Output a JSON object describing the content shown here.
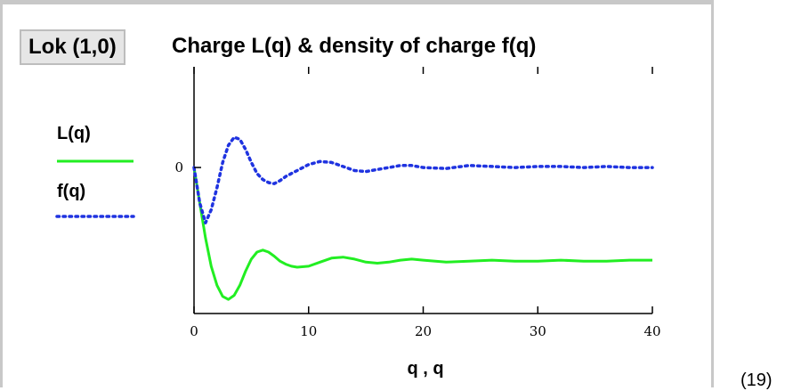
{
  "tag": "Lok (1,0)",
  "title": "Charge L(q) & density of charge f(q)",
  "equation_number": "(19)",
  "chart_data": {
    "type": "line",
    "title": "Charge L(q) & density of charge f(q)",
    "xlabel": "q , q",
    "ylabel": "",
    "xlim": [
      0,
      40
    ],
    "ylim": [
      -1.45,
      1.0
    ],
    "x_ticks": [
      0,
      10,
      20,
      30,
      40
    ],
    "y_ticks": [
      0
    ],
    "grid": false,
    "legend_position": "left",
    "series": [
      {
        "name": "L(q)",
        "color": "#22ee22",
        "style": "solid",
        "x": [
          0,
          0.5,
          1,
          1.5,
          2,
          2.5,
          3,
          3.5,
          4,
          4.5,
          5,
          5.5,
          6,
          6.5,
          7,
          7.5,
          8,
          8.5,
          9,
          10,
          11,
          12,
          13,
          14,
          15,
          16,
          17,
          18,
          19,
          20,
          22,
          24,
          26,
          28,
          30,
          32,
          34,
          36,
          38,
          40
        ],
        "y": [
          0,
          -0.35,
          -0.7,
          -0.98,
          -1.17,
          -1.28,
          -1.31,
          -1.27,
          -1.17,
          -1.03,
          -0.91,
          -0.84,
          -0.82,
          -0.84,
          -0.88,
          -0.93,
          -0.96,
          -0.98,
          -0.99,
          -0.98,
          -0.94,
          -0.9,
          -0.89,
          -0.91,
          -0.94,
          -0.95,
          -0.94,
          -0.92,
          -0.91,
          -0.92,
          -0.94,
          -0.93,
          -0.92,
          -0.93,
          -0.93,
          -0.92,
          -0.93,
          -0.93,
          -0.92,
          -0.92
        ]
      },
      {
        "name": "f(q)",
        "color": "#1f33e0",
        "style": "dotted",
        "x": [
          0,
          0.5,
          1,
          1.5,
          2,
          2.5,
          3,
          3.5,
          4,
          4.5,
          5,
          5.5,
          6,
          6.5,
          7,
          7.5,
          8,
          8.5,
          9,
          10,
          11,
          12,
          13,
          14,
          15,
          16,
          17,
          18,
          19,
          20,
          22,
          24,
          26,
          28,
          30,
          32,
          34,
          36,
          38,
          40
        ],
        "y": [
          0,
          -0.35,
          -0.55,
          -0.42,
          -0.2,
          0.05,
          0.22,
          0.3,
          0.28,
          0.18,
          0.05,
          -0.06,
          -0.12,
          -0.15,
          -0.16,
          -0.13,
          -0.09,
          -0.06,
          -0.03,
          0.03,
          0.06,
          0.05,
          0.01,
          -0.03,
          -0.04,
          -0.02,
          0.0,
          0.02,
          0.02,
          0.0,
          -0.01,
          0.02,
          0.01,
          0.0,
          0.01,
          0.01,
          0.0,
          0.01,
          0.0,
          0.0
        ]
      }
    ]
  }
}
